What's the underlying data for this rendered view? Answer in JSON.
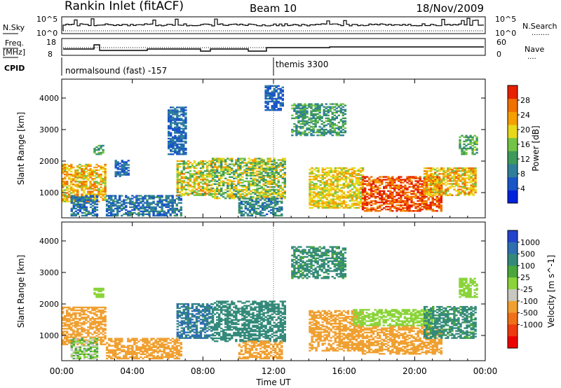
{
  "header": {
    "station": "Rankin Inlet (fitACF)",
    "beam": "Beam 10",
    "date": "18/Nov/2009"
  },
  "strip_nsky": {
    "label": "N.Sky",
    "left_ticks": [
      "10^5",
      "10^0"
    ],
    "right_ticks": [
      "10^5",
      "10^0"
    ],
    "right_label": "N.Search",
    "right_key": "........"
  },
  "strip_freq": {
    "label_line1": "Freq.",
    "label_line2": "[MHz]",
    "left_ticks": [
      "18",
      "8"
    ],
    "right_ticks": [
      "60",
      "0"
    ],
    "right_label": "Nave",
    "right_key": "...."
  },
  "cpid": {
    "label": "CPID",
    "modes": [
      {
        "name": "normalsound (fast) -157",
        "start": "00:00",
        "end": "12:00"
      },
      {
        "name": "themis 3300",
        "start": "12:00",
        "end": "24:00"
      }
    ]
  },
  "colors": {
    "power": [
      "#0022dd",
      "#1a55c8",
      "#2f7f9a",
      "#3e9a5a",
      "#73c446",
      "#e8d81c",
      "#f5a000",
      "#f07000",
      "#e62000"
    ],
    "velocity": [
      "#2244cc",
      "#2f6fb0",
      "#348a7a",
      "#4aa73c",
      "#8ad43a",
      "#c8c8c0",
      "#f0a030",
      "#f07018",
      "#ee3a10",
      "#ee0000"
    ]
  },
  "chart_data": [
    {
      "type": "heatmap",
      "name": "power",
      "ylabel": "Slant Range [km]",
      "xlabel": "",
      "xlim": [
        0,
        24
      ],
      "ylim": [
        200,
        4600
      ],
      "x_ticks": [
        "00:00",
        "04:00",
        "08:00",
        "12:00",
        "16:00",
        "20:00",
        "00:00"
      ],
      "y_ticks": [
        1000,
        2000,
        3000,
        4000
      ],
      "colorbar": {
        "label": "Power [dB]",
        "ticks": [
          4,
          8,
          12,
          16,
          20,
          24,
          28
        ],
        "range": [
          0,
          32
        ]
      },
      "regions": [
        {
          "t": [
            0.0,
            2.5
          ],
          "r": [
            700,
            1900
          ],
          "v": [
            16,
            28
          ]
        },
        {
          "t": [
            0.5,
            2.0
          ],
          "r": [
            250,
            900
          ],
          "v": [
            4,
            12
          ]
        },
        {
          "t": [
            1.8,
            2.4
          ],
          "r": [
            2200,
            2500
          ],
          "v": [
            8,
            16
          ]
        },
        {
          "t": [
            2.5,
            6.8
          ],
          "r": [
            250,
            900
          ],
          "v": [
            4,
            12
          ]
        },
        {
          "t": [
            3.0,
            3.8
          ],
          "r": [
            1500,
            2000
          ],
          "v": [
            4,
            10
          ]
        },
        {
          "t": [
            6.0,
            7.0
          ],
          "r": [
            2200,
            3700
          ],
          "v": [
            4,
            10
          ]
        },
        {
          "t": [
            6.5,
            8.5
          ],
          "r": [
            900,
            2000
          ],
          "v": [
            12,
            26
          ]
        },
        {
          "t": [
            8.5,
            12.6
          ],
          "r": [
            800,
            2100
          ],
          "v": [
            10,
            24
          ]
        },
        {
          "t": [
            10.0,
            12.5
          ],
          "r": [
            250,
            800
          ],
          "v": [
            6,
            14
          ]
        },
        {
          "t": [
            11.5,
            12.5
          ],
          "r": [
            3600,
            4400
          ],
          "v": [
            4,
            8
          ]
        },
        {
          "t": [
            13.0,
            16.0
          ],
          "r": [
            2800,
            3800
          ],
          "v": [
            8,
            16
          ]
        },
        {
          "t": [
            14.0,
            17.0
          ],
          "r": [
            500,
            1800
          ],
          "v": [
            16,
            24
          ]
        },
        {
          "t": [
            17.0,
            21.5
          ],
          "r": [
            400,
            1500
          ],
          "v": [
            24,
            32
          ]
        },
        {
          "t": [
            20.5,
            23.5
          ],
          "r": [
            900,
            1800
          ],
          "v": [
            16,
            28
          ]
        },
        {
          "t": [
            22.5,
            23.5
          ],
          "r": [
            2200,
            2800
          ],
          "v": [
            10,
            18
          ]
        }
      ]
    },
    {
      "type": "heatmap",
      "name": "velocity",
      "ylabel": "Slant Range [km]",
      "xlabel": "Time UT",
      "xlim": [
        0,
        24
      ],
      "ylim": [
        200,
        4600
      ],
      "x_ticks": [
        "00:00",
        "04:00",
        "08:00",
        "12:00",
        "16:00",
        "20:00",
        "00:00"
      ],
      "y_ticks": [
        1000,
        2000,
        3000,
        4000
      ],
      "colorbar": {
        "label": "Velocity [m s^-1]",
        "ticks": [
          1000,
          500,
          100,
          25,
          -25,
          -100,
          -500,
          -1000
        ]
      },
      "regions": [
        {
          "t": [
            0.0,
            2.5
          ],
          "r": [
            700,
            1900
          ],
          "v": [
            -500,
            -100
          ]
        },
        {
          "t": [
            0.5,
            2.0
          ],
          "r": [
            250,
            900
          ],
          "v": [
            -100,
            100
          ]
        },
        {
          "t": [
            1.8,
            2.4
          ],
          "r": [
            2200,
            2500
          ],
          "v": [
            -25,
            25
          ]
        },
        {
          "t": [
            2.5,
            6.8
          ],
          "r": [
            250,
            900
          ],
          "v": [
            -500,
            -100
          ]
        },
        {
          "t": [
            6.5,
            8.5
          ],
          "r": [
            900,
            2000
          ],
          "v": [
            100,
            1000
          ]
        },
        {
          "t": [
            8.5,
            12.6
          ],
          "r": [
            800,
            2100
          ],
          "v": [
            100,
            500
          ]
        },
        {
          "t": [
            10.0,
            12.5
          ],
          "r": [
            250,
            800
          ],
          "v": [
            -500,
            -100
          ]
        },
        {
          "t": [
            13.0,
            16.0
          ],
          "r": [
            2800,
            3800
          ],
          "v": [
            25,
            500
          ]
        },
        {
          "t": [
            14.0,
            17.0
          ],
          "r": [
            500,
            1800
          ],
          "v": [
            -500,
            -100
          ]
        },
        {
          "t": [
            16.5,
            21.0
          ],
          "r": [
            1300,
            1800
          ],
          "v": [
            -25,
            25
          ]
        },
        {
          "t": [
            17.0,
            21.5
          ],
          "r": [
            400,
            1300
          ],
          "v": [
            -500,
            -100
          ]
        },
        {
          "t": [
            20.5,
            23.5
          ],
          "r": [
            900,
            1900
          ],
          "v": [
            25,
            500
          ]
        },
        {
          "t": [
            22.5,
            23.5
          ],
          "r": [
            2200,
            2800
          ],
          "v": [
            -25,
            25
          ]
        }
      ]
    }
  ]
}
